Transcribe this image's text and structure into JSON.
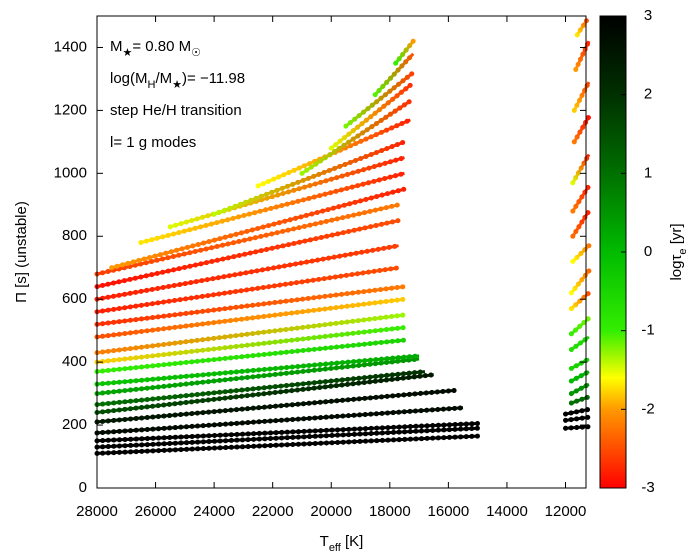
{
  "chart_data": {
    "type": "track-scatter",
    "ylabel": [
      {
        "text": "Π [s] (unstable)"
      }
    ],
    "xlabel": [
      {
        "text": "T"
      },
      {
        "text": "eff",
        "sub": true
      },
      {
        "text": " [K]"
      }
    ],
    "clabel": [
      {
        "text": "logτ"
      },
      {
        "text": "e",
        "sub": true
      },
      {
        "text": " [yr]"
      }
    ],
    "annotations": [
      [
        {
          "text": "M"
        },
        {
          "text": "★",
          "sub": true
        },
        {
          "text": "= 0.80 M"
        },
        {
          "text": "☉",
          "sub": true
        }
      ],
      [
        {
          "text": "log(M"
        },
        {
          "text": "H",
          "sub": true
        },
        {
          "text": "/M"
        },
        {
          "text": "★",
          "sub": true
        },
        {
          "text": ")= −11.98"
        }
      ],
      [
        {
          "text": "step He/H transition"
        }
      ],
      [
        {
          "text": "l= 1 g modes"
        }
      ]
    ],
    "xlim": [
      28000,
      11300
    ],
    "ylim": [
      0,
      1500
    ],
    "clim": [
      -3,
      3
    ],
    "xticks": [
      28000,
      26000,
      24000,
      22000,
      20000,
      18000,
      16000,
      14000,
      12000
    ],
    "yticks": [
      0,
      200,
      400,
      600,
      800,
      1000,
      1200,
      1400
    ],
    "cticks": [
      3,
      2,
      1,
      0,
      -1,
      -2,
      -3
    ],
    "colormap": [
      {
        "value": -3,
        "color": "#ff0000"
      },
      {
        "value": -2,
        "color": "#ff9900"
      },
      {
        "value": -1.6,
        "color": "#ffff00"
      },
      {
        "value": -1,
        "color": "#33ee00"
      },
      {
        "value": 0,
        "color": "#00bb00"
      },
      {
        "value": 1,
        "color": "#007000"
      },
      {
        "value": 2,
        "color": "#003000"
      },
      {
        "value": 3,
        "color": "#000000"
      }
    ],
    "series": [
      {
        "x": [
          28000,
          15000
        ],
        "y": [
          110,
          165
        ],
        "c": [
          3,
          3
        ]
      },
      {
        "x": [
          28000,
          15000
        ],
        "y": [
          130,
          190
        ],
        "c": [
          3,
          3
        ]
      },
      {
        "x": [
          28000,
          15000
        ],
        "y": [
          150,
          205
        ],
        "c": [
          3,
          3
        ]
      },
      {
        "x": [
          28000,
          15500
        ],
        "y": [
          175,
          255
        ],
        "c": [
          2.8,
          2.8
        ]
      },
      {
        "x": [
          28000,
          15800
        ],
        "y": [
          210,
          310
        ],
        "c": [
          2.5,
          2.8
        ]
      },
      {
        "x": [
          28000,
          16500
        ],
        "y": [
          240,
          360
        ],
        "c": [
          1.5,
          2.5
        ]
      },
      {
        "x": [
          28000,
          16800
        ],
        "y": [
          265,
          370
        ],
        "c": [
          1,
          2
        ]
      },
      {
        "x": [
          28000,
          17000
        ],
        "y": [
          300,
          410
        ],
        "c": [
          0.3,
          0.5
        ]
      },
      {
        "x": [
          28000,
          17000
        ],
        "y": [
          330,
          420
        ],
        "c": [
          -0.2,
          0.2
        ]
      },
      {
        "x": [
          28000,
          17500
        ],
        "y": [
          370,
          470
        ],
        "c": [
          -1,
          -0.5
        ]
      },
      {
        "x": [
          28000,
          17500
        ],
        "y": [
          400,
          510
        ],
        "c": [
          -1.8,
          -1
        ]
      },
      {
        "x": [
          28000,
          17500
        ],
        "y": [
          430,
          550
        ],
        "c": [
          -2.2,
          -1.3
        ]
      },
      {
        "x": [
          28000,
          17500
        ],
        "y": [
          480,
          600
        ],
        "c": [
          -2.5,
          -1.8
        ]
      },
      {
        "x": [
          28000,
          17500
        ],
        "y": [
          520,
          640
        ],
        "c": [
          -2.7,
          -2.2
        ]
      },
      {
        "x": [
          28000,
          17700
        ],
        "y": [
          560,
          700
        ],
        "c": [
          -2.8,
          -2.5
        ]
      },
      {
        "x": [
          28000,
          17700
        ],
        "y": [
          600,
          770
        ],
        "c": [
          -2.8,
          -2.6
        ]
      },
      {
        "x": [
          28000,
          17700
        ],
        "y": [
          640,
          850
        ],
        "c": [
          -2.9,
          -2.5
        ]
      },
      {
        "x": [
          28000,
          17700
        ],
        "y": [
          680,
          900
        ],
        "c": [
          -2.6,
          -2.2
        ]
      },
      {
        "x": [
          27500,
          17500
        ],
        "y": [
          700,
          950
        ],
        "c": [
          -2,
          -2.8
        ]
      },
      {
        "x": [
          26500,
          17500
        ],
        "y": [
          780,
          1000
        ],
        "c": [
          -1.7,
          -2.8
        ]
      },
      {
        "x": [
          25500,
          17500
        ],
        "y": [
          830,
          1050
        ],
        "c": [
          -1.5,
          -2.8
        ]
      },
      {
        "x": [
          24000,
          17500
        ],
        "y": [
          870,
          1100
        ],
        "c": [
          -1.4,
          -2.8
        ]
      },
      {
        "x": [
          22500,
          17300
        ],
        "y": [
          960,
          1170
        ],
        "c": [
          -1.6,
          -2.8
        ]
      },
      {
        "x": [
          21000,
          17300
        ],
        "y": [
          1000,
          1230
        ],
        "c": [
          -1.3,
          -2.7
        ]
      },
      {
        "x": [
          20000,
          17300
        ],
        "y": [
          1080,
          1280
        ],
        "c": [
          -1.5,
          -2.7
        ]
      },
      {
        "x": [
          19500,
          17200
        ],
        "y": [
          1150,
          1320
        ],
        "c": [
          -1.2,
          -2.6
        ]
      },
      {
        "x": [
          18500,
          17200
        ],
        "y": [
          1250,
          1380
        ],
        "c": [
          -1.1,
          -2.5
        ]
      },
      {
        "x": [
          17800,
          17200
        ],
        "y": [
          1350,
          1420
        ],
        "c": [
          -1,
          -2
        ]
      },
      {
        "x": [
          12000,
          11200
        ],
        "y": [
          190,
          195
        ],
        "c": [
          3,
          3
        ]
      },
      {
        "x": [
          12000,
          11200
        ],
        "y": [
          215,
          225
        ],
        "c": [
          3,
          3
        ]
      },
      {
        "x": [
          12000,
          11200
        ],
        "y": [
          235,
          250
        ],
        "c": [
          3,
          3
        ]
      },
      {
        "x": [
          11800,
          11200
        ],
        "y": [
          270,
          290
        ],
        "c": [
          1,
          1.2
        ]
      },
      {
        "x": [
          11800,
          11200
        ],
        "y": [
          300,
          330
        ],
        "c": [
          0.5,
          0.6
        ]
      },
      {
        "x": [
          11800,
          11200
        ],
        "y": [
          340,
          370
        ],
        "c": [
          0,
          0.2
        ]
      },
      {
        "x": [
          11800,
          11200
        ],
        "y": [
          380,
          410
        ],
        "c": [
          -0.5,
          -0.3
        ]
      },
      {
        "x": [
          11800,
          11200
        ],
        "y": [
          440,
          480
        ],
        "c": [
          -0.7,
          -0.5
        ]
      },
      {
        "x": [
          11800,
          11200
        ],
        "y": [
          490,
          540
        ],
        "c": [
          -1,
          -1.2
        ]
      },
      {
        "x": [
          11800,
          11200
        ],
        "y": [
          570,
          620
        ],
        "c": [
          -1.7,
          -2.5
        ]
      },
      {
        "x": [
          11800,
          11200
        ],
        "y": [
          620,
          690
        ],
        "c": [
          -1.6,
          -2.3
        ]
      },
      {
        "x": [
          11750,
          11200
        ],
        "y": [
          720,
          770
        ],
        "c": [
          -1.6,
          -2.2
        ]
      },
      {
        "x": [
          11750,
          11200
        ],
        "y": [
          800,
          880
        ],
        "c": [
          -2.3,
          -2.8
        ]
      },
      {
        "x": [
          11750,
          11200
        ],
        "y": [
          880,
          960
        ],
        "c": [
          -2.2,
          -2.8
        ]
      },
      {
        "x": [
          11750,
          11200
        ],
        "y": [
          970,
          1060
        ],
        "c": [
          -1.5,
          -2.8
        ]
      },
      {
        "x": [
          11700,
          11200
        ],
        "y": [
          1100,
          1180
        ],
        "c": [
          -2.2,
          -2.9
        ]
      },
      {
        "x": [
          11700,
          11200
        ],
        "y": [
          1200,
          1290
        ],
        "c": [
          -1.8,
          -2.6
        ]
      },
      {
        "x": [
          11650,
          11200
        ],
        "y": [
          1330,
          1420
        ],
        "c": [
          -2,
          -2.8
        ]
      },
      {
        "x": [
          11600,
          11250
        ],
        "y": [
          1440,
          1490
        ],
        "c": [
          -1.7,
          -2.5
        ]
      }
    ]
  }
}
